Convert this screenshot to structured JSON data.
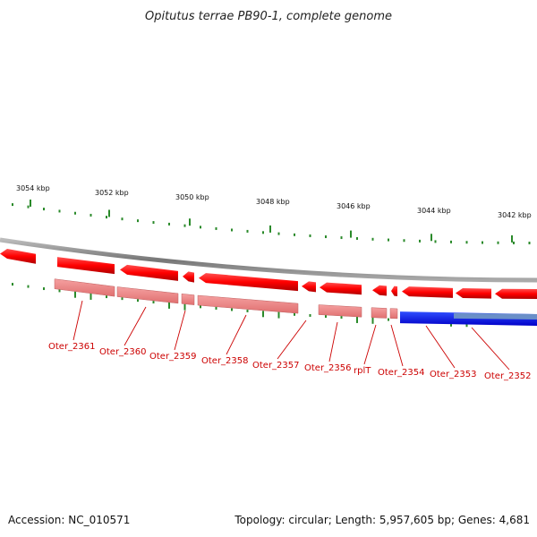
{
  "title": "Opitutus terrae PB90-1, complete genome",
  "accession": "Accession: NC_010571",
  "summary": "Topology: circular; Length: 5,957,605 bp; Genes: 4,681",
  "scale": {
    "ticks": [
      {
        "label": "3054 kbp",
        "kbp": 3054
      },
      {
        "label": "3052 kbp",
        "kbp": 3052
      },
      {
        "label": "3050 kbp",
        "kbp": 3050
      },
      {
        "label": "3048 kbp",
        "kbp": 3048
      },
      {
        "label": "3046 kbp",
        "kbp": 3046
      },
      {
        "label": "3044 kbp",
        "kbp": 3044
      },
      {
        "label": "3042 kbp",
        "kbp": 3042
      }
    ]
  },
  "genes": [
    {
      "label": "Oter_2361",
      "strand": "minus"
    },
    {
      "label": "Oter_2360",
      "strand": "minus"
    },
    {
      "label": "Oter_2359",
      "strand": "minus"
    },
    {
      "label": "Oter_2358",
      "strand": "minus"
    },
    {
      "label": "Oter_2357",
      "strand": "minus"
    },
    {
      "label": "Oter_2356",
      "strand": "minus"
    },
    {
      "label": "rplT",
      "strand": "minus"
    },
    {
      "label": "Oter_2354",
      "strand": "minus"
    },
    {
      "label": "Oter_2353",
      "strand": "minus"
    },
    {
      "label": "Oter_2352",
      "strand": "minus"
    }
  ],
  "colors": {
    "gene": "#ff0000",
    "gene_light": "#f08080",
    "gene_shadow": "#a00000",
    "rna": "#0000ff",
    "rna_light": "#6a8fc8",
    "backbone": "#888888",
    "tick": "#2a8a2a",
    "label": "#cc0000"
  }
}
